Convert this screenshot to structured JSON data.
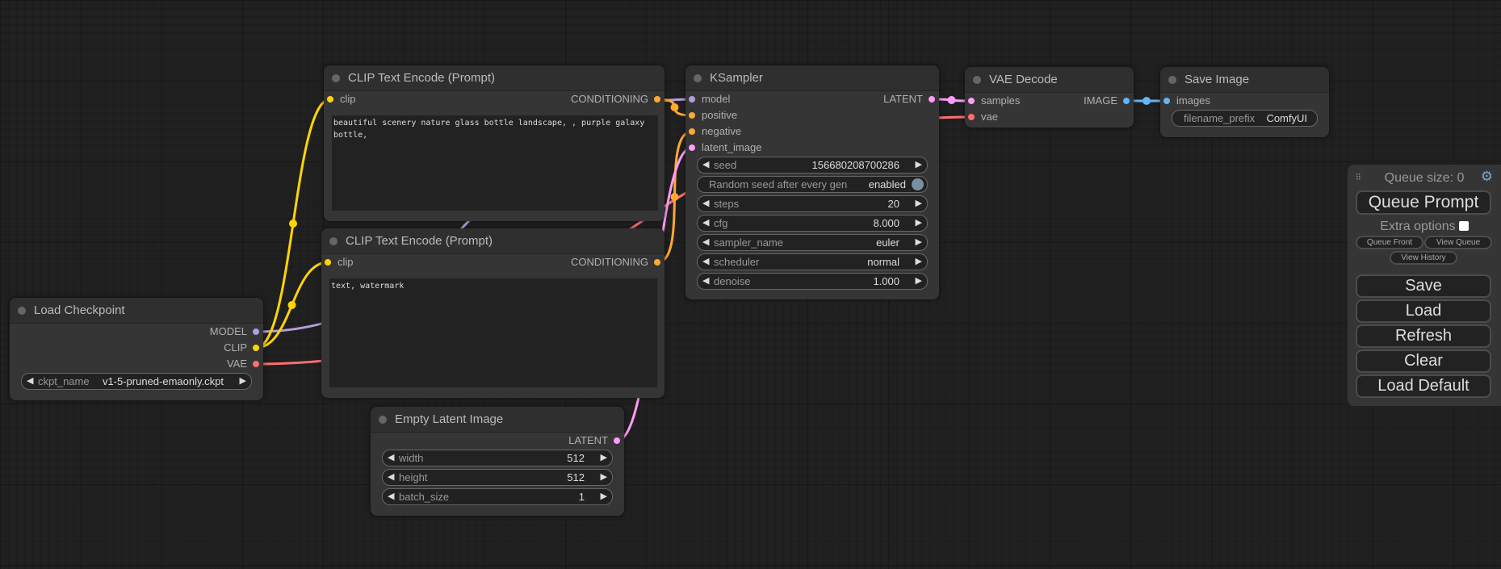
{
  "slot_colors": {
    "MODEL": "#b39ddb",
    "CLIP": "#ffd500",
    "VAE": "#ff6e6e",
    "CONDITIONING": "#ffa931",
    "LATENT": "#ff9cf9",
    "IMAGE": "#64b5f6"
  },
  "nodes": [
    {
      "id": "load-checkpoint",
      "title": "Load Checkpoint",
      "inputs": [],
      "outputs": [
        {
          "name": "MODEL",
          "type": "MODEL"
        },
        {
          "name": "CLIP",
          "type": "CLIP"
        },
        {
          "name": "VAE",
          "type": "VAE"
        }
      ],
      "widgets": [
        {
          "name": "ckpt_name",
          "value": "v1-5-pruned-emaonly.ckpt",
          "kind": "combo"
        }
      ]
    },
    {
      "id": "clip-text-encode-positive",
      "title": "CLIP Text Encode (Prompt)",
      "inputs": [
        {
          "name": "clip",
          "type": "CLIP"
        }
      ],
      "outputs": [
        {
          "name": "CONDITIONING",
          "type": "CONDITIONING"
        }
      ],
      "widgets": [],
      "text": "beautiful scenery nature glass bottle landscape, , purple galaxy bottle,"
    },
    {
      "id": "clip-text-encode-negative",
      "title": "CLIP Text Encode (Prompt)",
      "inputs": [
        {
          "name": "clip",
          "type": "CLIP"
        }
      ],
      "outputs": [
        {
          "name": "CONDITIONING",
          "type": "CONDITIONING"
        }
      ],
      "widgets": [],
      "text": "text, watermark"
    },
    {
      "id": "empty-latent-image",
      "title": "Empty Latent Image",
      "inputs": [],
      "outputs": [
        {
          "name": "LATENT",
          "type": "LATENT"
        }
      ],
      "widgets": [
        {
          "name": "width",
          "value": "512",
          "kind": "number"
        },
        {
          "name": "height",
          "value": "512",
          "kind": "number"
        },
        {
          "name": "batch_size",
          "value": "1",
          "kind": "number"
        }
      ]
    },
    {
      "id": "ksampler",
      "title": "KSampler",
      "inputs": [
        {
          "name": "model",
          "type": "MODEL"
        },
        {
          "name": "positive",
          "type": "CONDITIONING"
        },
        {
          "name": "negative",
          "type": "CONDITIONING"
        },
        {
          "name": "latent_image",
          "type": "LATENT"
        }
      ],
      "outputs": [
        {
          "name": "LATENT",
          "type": "LATENT"
        }
      ],
      "widgets": [
        {
          "name": "seed",
          "value": "156680208700286",
          "kind": "number"
        },
        {
          "name": "Random seed after every gen",
          "value": "enabled",
          "kind": "toggle"
        },
        {
          "name": "steps",
          "value": "20",
          "kind": "number"
        },
        {
          "name": "cfg",
          "value": "8.000",
          "kind": "number"
        },
        {
          "name": "sampler_name",
          "value": "euler",
          "kind": "combo"
        },
        {
          "name": "scheduler",
          "value": "normal",
          "kind": "combo"
        },
        {
          "name": "denoise",
          "value": "1.000",
          "kind": "number"
        }
      ]
    },
    {
      "id": "vae-decode",
      "title": "VAE Decode",
      "inputs": [
        {
          "name": "samples",
          "type": "LATENT"
        },
        {
          "name": "vae",
          "type": "VAE"
        }
      ],
      "outputs": [
        {
          "name": "IMAGE",
          "type": "IMAGE"
        }
      ],
      "widgets": []
    },
    {
      "id": "save-image",
      "title": "Save Image",
      "inputs": [
        {
          "name": "images",
          "type": "IMAGE"
        }
      ],
      "outputs": [],
      "widgets": [
        {
          "name": "filename_prefix",
          "value": "ComfyUI",
          "kind": "text"
        }
      ]
    }
  ],
  "links": [
    {
      "from": "load-checkpoint",
      "out": 0,
      "to": "ksampler",
      "in": 0,
      "type": "MODEL"
    },
    {
      "from": "load-checkpoint",
      "out": 1,
      "to": "clip-text-encode-positive",
      "in": 0,
      "type": "CLIP"
    },
    {
      "from": "load-checkpoint",
      "out": 1,
      "to": "clip-text-encode-negative",
      "in": 0,
      "type": "CLIP"
    },
    {
      "from": "load-checkpoint",
      "out": 2,
      "to": "vae-decode",
      "in": 1,
      "type": "VAE"
    },
    {
      "from": "clip-text-encode-positive",
      "out": 0,
      "to": "ksampler",
      "in": 1,
      "type": "CONDITIONING"
    },
    {
      "from": "clip-text-encode-negative",
      "out": 0,
      "to": "ksampler",
      "in": 2,
      "type": "CONDITIONING"
    },
    {
      "from": "empty-latent-image",
      "out": 0,
      "to": "ksampler",
      "in": 3,
      "type": "LATENT"
    },
    {
      "from": "ksampler",
      "out": 0,
      "to": "vae-decode",
      "in": 0,
      "type": "LATENT"
    },
    {
      "from": "vae-decode",
      "out": 0,
      "to": "save-image",
      "in": 0,
      "type": "IMAGE"
    }
  ],
  "menu": {
    "queue_size": "Queue size: 0",
    "queue_prompt": "Queue Prompt",
    "extra_options": "Extra options",
    "queue_front": "Queue Front",
    "view_queue": "View Queue",
    "view_history": "View History",
    "save": "Save",
    "load": "Load",
    "refresh": "Refresh",
    "clear": "Clear",
    "load_default": "Load Default",
    "grip_icon": "drag-handle",
    "settings_icon": "gear"
  }
}
